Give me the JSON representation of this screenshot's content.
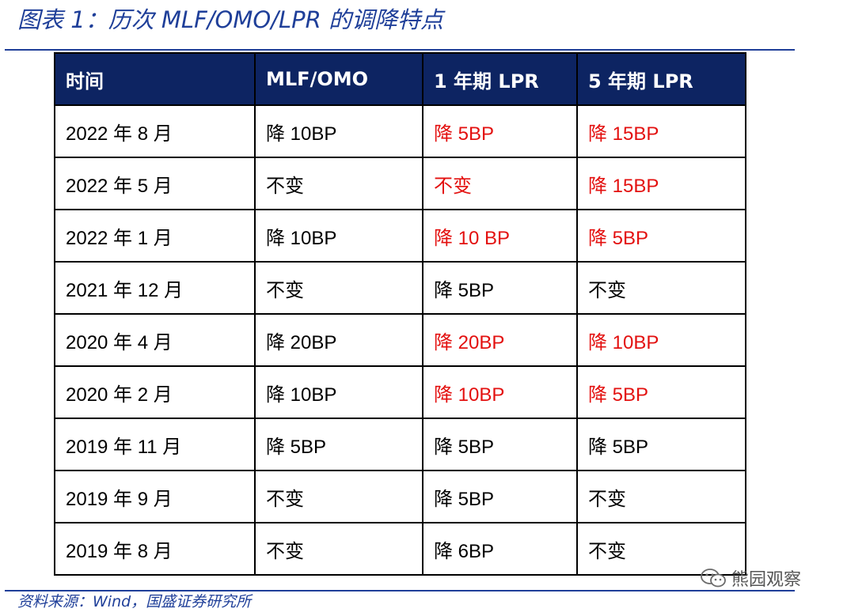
{
  "figure": {
    "title": "图表 1：历次 MLF/OMO/LPR 的调降特点",
    "source": "资料来源：Wind，国盛证券研究所"
  },
  "watermark": {
    "text": "熊园观察",
    "icon": "wechat-icon"
  },
  "colors": {
    "header_bg": "#0d2462",
    "header_text": "#ffffff",
    "highlight": "#e3100f",
    "title": "#1f3f99",
    "border": "#000000"
  },
  "table": {
    "headers": [
      "时间",
      "MLF/OMO",
      "1 年期 LPR",
      "5 年期 LPR"
    ],
    "rows": [
      {
        "date": "2022 年 8 月",
        "mlf": "降 10BP",
        "lpr1": "降 5BP",
        "lpr5": "降 15BP",
        "lpr1_hl": true,
        "lpr5_hl": true
      },
      {
        "date": "2022 年 5 月",
        "mlf": "不变",
        "lpr1": "不变",
        "lpr5": "降 15BP",
        "lpr1_hl": true,
        "lpr5_hl": true
      },
      {
        "date": "2022 年 1 月",
        "mlf": "降 10BP",
        "lpr1": "降 10 BP",
        "lpr5": "降 5BP",
        "lpr1_hl": true,
        "lpr5_hl": true
      },
      {
        "date": "2021 年 12 月",
        "mlf": "不变",
        "lpr1": "降 5BP",
        "lpr5": "不变",
        "lpr1_hl": false,
        "lpr5_hl": false
      },
      {
        "date": "2020 年 4 月",
        "mlf": "降 20BP",
        "lpr1": "降 20BP",
        "lpr5": "降 10BP",
        "lpr1_hl": true,
        "lpr5_hl": true
      },
      {
        "date": "2020 年 2 月",
        "mlf": "降 10BP",
        "lpr1": "降 10BP",
        "lpr5": "降 5BP",
        "lpr1_hl": true,
        "lpr5_hl": true
      },
      {
        "date": "2019 年 11 月",
        "mlf": "降 5BP",
        "lpr1": "降 5BP",
        "lpr5": "降 5BP",
        "lpr1_hl": false,
        "lpr5_hl": false
      },
      {
        "date": "2019 年 9 月",
        "mlf": "不变",
        "lpr1": "降 5BP",
        "lpr5": "不变",
        "lpr1_hl": false,
        "lpr5_hl": false
      },
      {
        "date": "2019 年 8 月",
        "mlf": "不变",
        "lpr1": "降 6BP",
        "lpr5": "不变",
        "lpr1_hl": false,
        "lpr5_hl": false
      }
    ]
  }
}
